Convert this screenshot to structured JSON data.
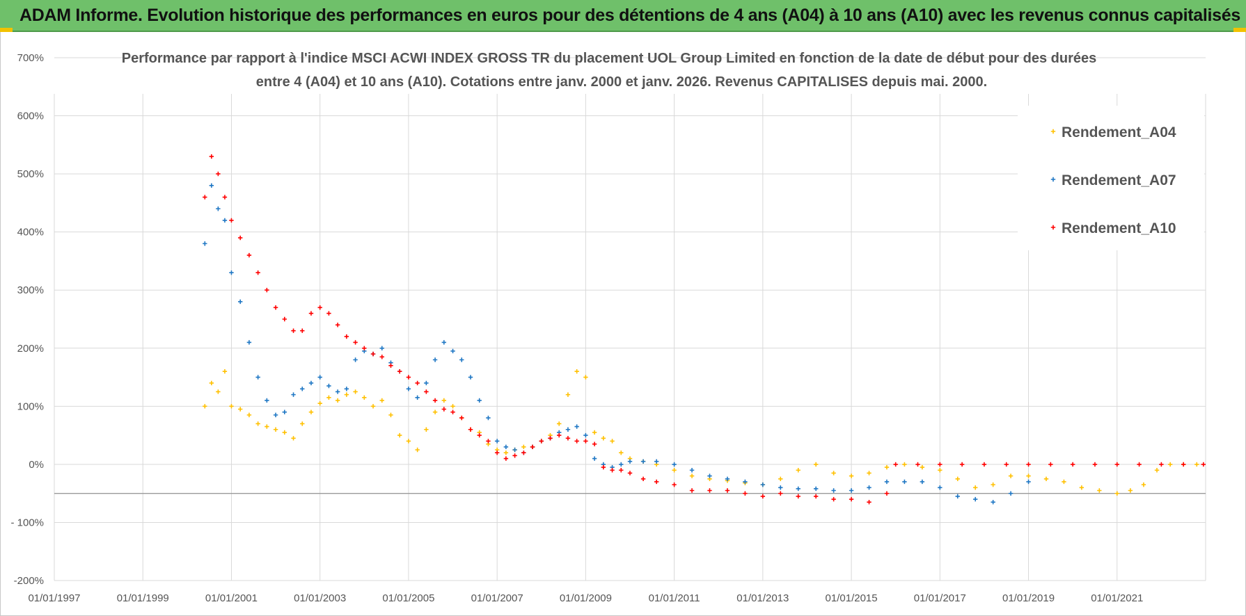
{
  "banner": {
    "title": "ADAM Informe. Evolution historique des performances en euros pour des détentions de 4 ans (A04) à 10 ans (A10) avec les revenus connus capitalisés"
  },
  "colors": {
    "banner": "#6fc06a",
    "accent": "#f2c200",
    "A04": "#ffc000",
    "A07": "#1f77c4",
    "A10": "#ff0000",
    "grid": "#d9d9d9"
  },
  "chart_data": {
    "type": "scatter",
    "title_lines": [
      "Performance par rapport à l'indice MSCI ACWI INDEX GROSS TR  du placement UOL Group Limited en fonction de la date de début pour des durées",
      "entre 4 (A04) et 10 ans (A10).  Cotations entre janv. 2000 et janv. 2026. Revenus CAPITALISES depuis mai. 2000."
    ],
    "xlabel": "",
    "ylabel": "",
    "xlim": [
      1997.0,
      2023.0
    ],
    "ylim": [
      -200,
      700
    ],
    "y_ticks": [
      -200,
      -100,
      0,
      100,
      200,
      300,
      400,
      500,
      600,
      700
    ],
    "y_tick_labels": [
      "-200%",
      "- 100%",
      "0%",
      "100%",
      "200%",
      "300%",
      "400%",
      "500%",
      "600%",
      "700%"
    ],
    "x_ticks": [
      1997,
      1999,
      2001,
      2003,
      2005,
      2007,
      2009,
      2011,
      2013,
      2015,
      2017,
      2019,
      2021
    ],
    "x_tick_labels": [
      "01/01/1997",
      "01/01/1999",
      "01/01/2001",
      "01/01/2003",
      "01/01/2005",
      "01/01/2007",
      "01/01/2009",
      "01/01/2011",
      "01/01/2013",
      "01/01/2015",
      "01/01/2017",
      "01/01/2019",
      "01/01/2021"
    ],
    "grid": true,
    "legend_position": "top-right",
    "series": [
      {
        "name": "Rendement_A04",
        "color": "#ffc000",
        "x": [
          2000.4,
          2000.55,
          2000.7,
          2000.85,
          2001.0,
          2001.2,
          2001.4,
          2001.6,
          2001.8,
          2002.0,
          2002.2,
          2002.4,
          2002.6,
          2002.8,
          2003.0,
          2003.2,
          2003.4,
          2003.6,
          2003.8,
          2004.0,
          2004.2,
          2004.4,
          2004.6,
          2004.8,
          2005.0,
          2005.2,
          2005.4,
          2005.6,
          2005.8,
          2006.0,
          2006.2,
          2006.4,
          2006.6,
          2006.8,
          2007.0,
          2007.2,
          2007.4,
          2007.6,
          2007.8,
          2008.0,
          2008.2,
          2008.4,
          2008.6,
          2008.8,
          2009.0,
          2009.2,
          2009.4,
          2009.6,
          2009.8,
          2010.0,
          2010.3,
          2010.6,
          2011.0,
          2011.4,
          2011.8,
          2012.2,
          2012.6,
          2013.0,
          2013.4,
          2013.8,
          2014.2,
          2014.6,
          2015.0,
          2015.4,
          2015.8,
          2016.2,
          2016.6,
          2017.0,
          2017.4,
          2017.8,
          2018.2,
          2018.6,
          2019.0,
          2019.4,
          2019.8,
          2020.2,
          2020.6,
          2021.0,
          2021.3,
          2021.6,
          2021.9,
          2022.2,
          2022.5,
          2022.8
        ],
        "values": [
          100,
          140,
          125,
          160,
          100,
          95,
          85,
          70,
          65,
          60,
          55,
          45,
          70,
          90,
          105,
          115,
          110,
          120,
          125,
          115,
          100,
          110,
          85,
          50,
          40,
          25,
          60,
          90,
          110,
          100,
          80,
          60,
          55,
          35,
          25,
          20,
          25,
          30,
          30,
          40,
          50,
          70,
          120,
          160,
          150,
          55,
          45,
          40,
          20,
          10,
          5,
          0,
          -10,
          -20,
          -25,
          -28,
          -32,
          -35,
          -25,
          -10,
          0,
          -15,
          -20,
          -15,
          -5,
          0,
          -5,
          -10,
          -25,
          -40,
          -35,
          -20,
          -20,
          -25,
          -30,
          -40,
          -45,
          -50,
          -45,
          -35,
          -10,
          0,
          0,
          0
        ]
      },
      {
        "name": "Rendement_A07",
        "color": "#1f77c4",
        "x": [
          2000.4,
          2000.55,
          2000.7,
          2000.85,
          2001.0,
          2001.2,
          2001.4,
          2001.6,
          2001.8,
          2002.0,
          2002.2,
          2002.4,
          2002.6,
          2002.8,
          2003.0,
          2003.2,
          2003.4,
          2003.6,
          2003.8,
          2004.0,
          2004.2,
          2004.4,
          2004.6,
          2004.8,
          2005.0,
          2005.2,
          2005.4,
          2005.6,
          2005.8,
          2006.0,
          2006.2,
          2006.4,
          2006.6,
          2006.8,
          2007.0,
          2007.2,
          2007.4,
          2007.6,
          2007.8,
          2008.0,
          2008.2,
          2008.4,
          2008.6,
          2008.8,
          2009.0,
          2009.2,
          2009.4,
          2009.6,
          2009.8,
          2010.0,
          2010.3,
          2010.6,
          2011.0,
          2011.4,
          2011.8,
          2012.2,
          2012.6,
          2013.0,
          2013.4,
          2013.8,
          2014.2,
          2014.6,
          2015.0,
          2015.4,
          2015.8,
          2016.2,
          2016.6,
          2017.0,
          2017.4,
          2017.8,
          2018.2,
          2018.6,
          2019.0
        ],
        "values": [
          380,
          480,
          440,
          420,
          330,
          280,
          210,
          150,
          110,
          85,
          90,
          120,
          130,
          140,
          150,
          135,
          125,
          130,
          180,
          195,
          190,
          200,
          175,
          160,
          130,
          115,
          140,
          180,
          210,
          195,
          180,
          150,
          110,
          80,
          40,
          30,
          25,
          20,
          30,
          40,
          45,
          55,
          60,
          65,
          50,
          10,
          0,
          -5,
          0,
          5,
          5,
          5,
          0,
          -10,
          -20,
          -25,
          -30,
          -35,
          -40,
          -42,
          -42,
          -45,
          -45,
          -40,
          -30,
          -30,
          -30,
          -40,
          -55,
          -60,
          -65,
          -50,
          -30
        ]
      },
      {
        "name": "Rendement_A10",
        "color": "#ff0000",
        "x": [
          2000.4,
          2000.55,
          2000.7,
          2000.85,
          2001.0,
          2001.2,
          2001.4,
          2001.6,
          2001.8,
          2002.0,
          2002.2,
          2002.4,
          2002.6,
          2002.8,
          2003.0,
          2003.2,
          2003.4,
          2003.6,
          2003.8,
          2004.0,
          2004.2,
          2004.4,
          2004.6,
          2004.8,
          2005.0,
          2005.2,
          2005.4,
          2005.6,
          2005.8,
          2006.0,
          2006.2,
          2006.4,
          2006.6,
          2006.8,
          2007.0,
          2007.2,
          2007.4,
          2007.6,
          2007.8,
          2008.0,
          2008.2,
          2008.4,
          2008.6,
          2008.8,
          2009.0,
          2009.2,
          2009.4,
          2009.6,
          2009.8,
          2010.0,
          2010.3,
          2010.6,
          2011.0,
          2011.4,
          2011.8,
          2012.2,
          2012.6,
          2013.0,
          2013.4,
          2013.8,
          2014.2,
          2014.6,
          2015.0,
          2015.4,
          2015.8,
          2016.0,
          2016.5,
          2017.0,
          2017.5,
          2018.0,
          2018.5,
          2019.0,
          2019.5,
          2020.0,
          2020.5,
          2021.0,
          2021.5,
          2022.0,
          2022.5,
          2022.95
        ],
        "values": [
          460,
          530,
          500,
          460,
          420,
          390,
          360,
          330,
          300,
          270,
          250,
          230,
          230,
          260,
          270,
          260,
          240,
          220,
          210,
          200,
          190,
          185,
          170,
          160,
          150,
          140,
          125,
          110,
          95,
          90,
          80,
          60,
          50,
          40,
          20,
          10,
          15,
          20,
          30,
          40,
          45,
          50,
          45,
          40,
          40,
          35,
          -5,
          -10,
          -10,
          -15,
          -25,
          -30,
          -35,
          -45,
          -45,
          -45,
          -50,
          -55,
          -50,
          -55,
          -55,
          -60,
          -60,
          -65,
          -50,
          0,
          0,
          0,
          0,
          0,
          0,
          0,
          0,
          0,
          0,
          0,
          0,
          0,
          0,
          0
        ]
      }
    ]
  }
}
